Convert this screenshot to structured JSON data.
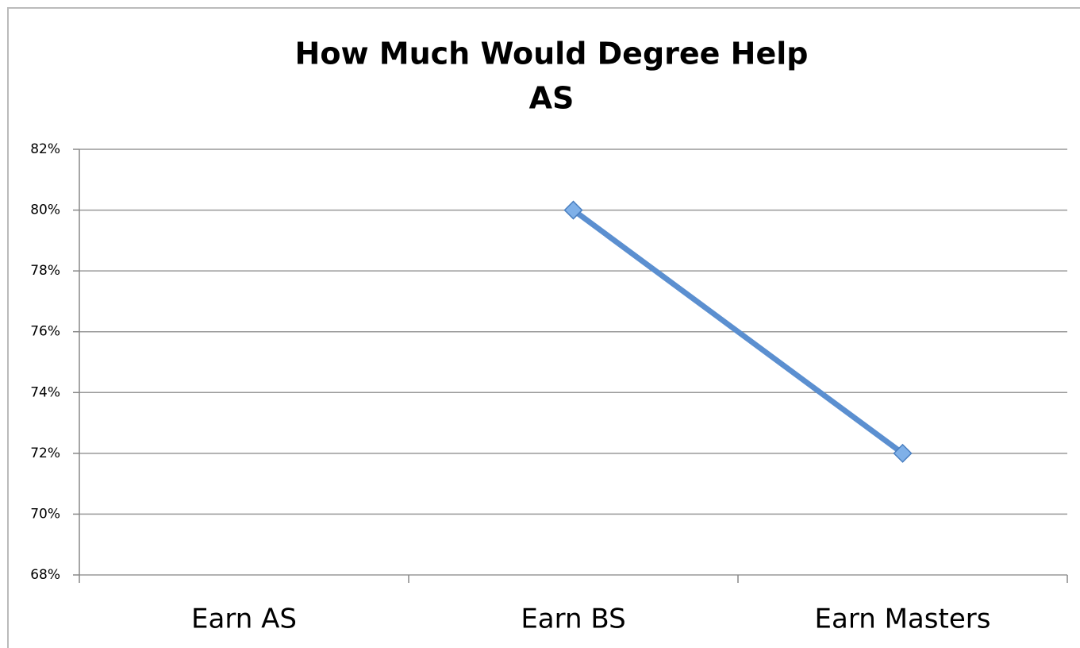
{
  "chart_data": {
    "type": "line",
    "title": [
      "How Much Would Degree Help",
      "AS"
    ],
    "categories": [
      "Earn AS",
      "Earn BS",
      "Earn Masters"
    ],
    "series": [
      {
        "name": "AS",
        "color": "#5b8fd0",
        "values": [
          null,
          80,
          72
        ]
      }
    ],
    "ylim": [
      68,
      82
    ],
    "yticks": [
      {
        "value": 68,
        "label": "68%"
      },
      {
        "value": 70,
        "label": "70%"
      },
      {
        "value": 72,
        "label": "72%"
      },
      {
        "value": 74,
        "label": "74%"
      },
      {
        "value": 76,
        "label": "76%"
      },
      {
        "value": 78,
        "label": "78%"
      },
      {
        "value": 80,
        "label": "80%"
      },
      {
        "value": 82,
        "label": "82%"
      }
    ],
    "grid": true
  }
}
